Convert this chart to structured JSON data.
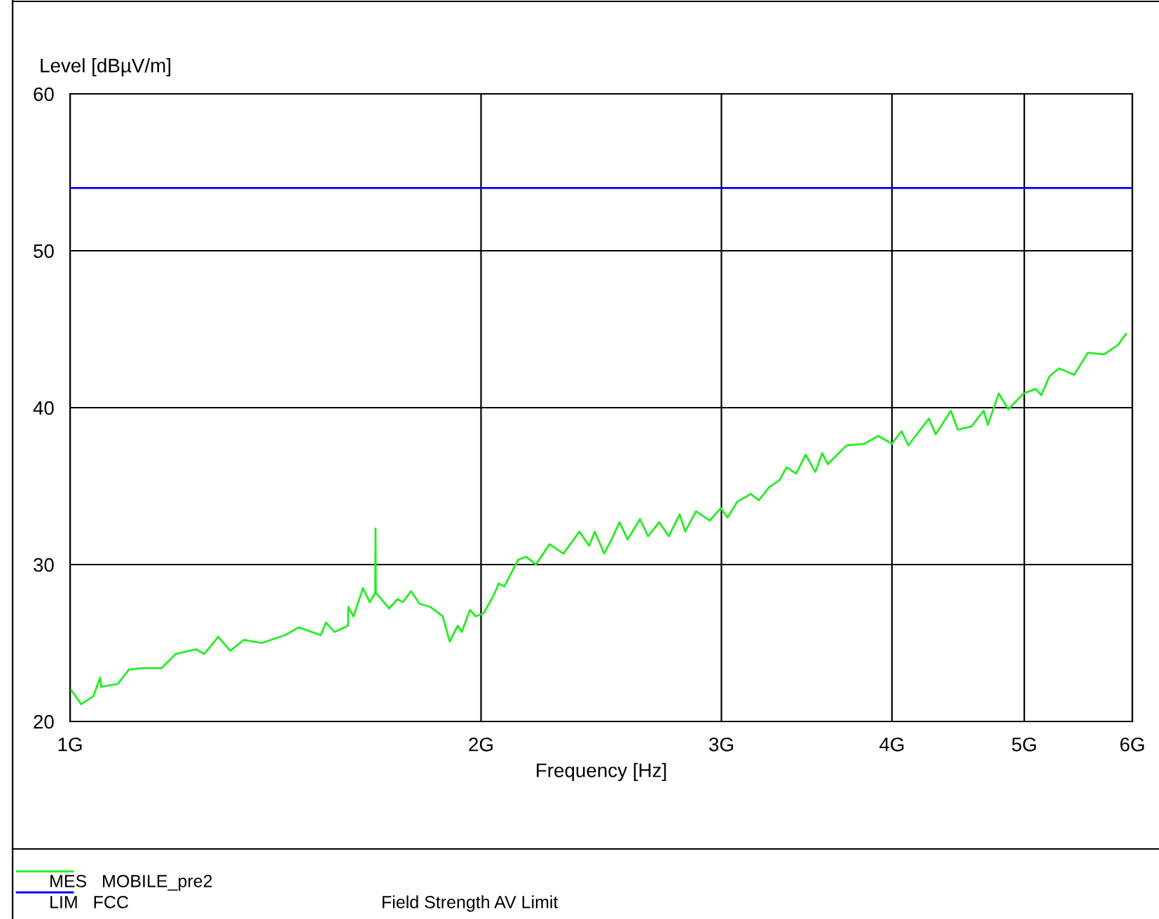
{
  "chart_data": {
    "type": "line",
    "xlabel": "Frequency [Hz]",
    "ylabel": "Level [dBµV/m]",
    "log": "x",
    "xlim": [
      1,
      6
    ],
    "ylim": [
      20,
      60
    ],
    "xticks": [
      {
        "value": 1,
        "label": "1G"
      },
      {
        "value": 2,
        "label": "2G"
      },
      {
        "value": 3,
        "label": "3G"
      },
      {
        "value": 4,
        "label": "4G"
      },
      {
        "value": 5,
        "label": "5G"
      },
      {
        "value": 6,
        "label": "6G"
      }
    ],
    "yticks": [
      20,
      30,
      40,
      50,
      60
    ],
    "grid": true,
    "legend": "bottom",
    "series": [
      {
        "name": "MES   MOBILE_pre2",
        "color": "#22ee22",
        "x": [
          1.002,
          1.019,
          1.04,
          1.052,
          1.054,
          1.084,
          1.104,
          1.128,
          1.167,
          1.195,
          1.237,
          1.254,
          1.284,
          1.31,
          1.341,
          1.382,
          1.437,
          1.471,
          1.526,
          1.54,
          1.562,
          1.598,
          1.599,
          1.613,
          1.639,
          1.658,
          1.673,
          1.674,
          1.675,
          1.713,
          1.737,
          1.753,
          1.777,
          1.803,
          1.836,
          1.875,
          1.897,
          1.923,
          1.936,
          1.963,
          1.982,
          2.009,
          2.042,
          2.061,
          2.08,
          2.129,
          2.158,
          2.194,
          2.245,
          2.298,
          2.361,
          2.4,
          2.423,
          2.462,
          2.502,
          2.526,
          2.561,
          2.615,
          2.651,
          2.701,
          2.745,
          2.796,
          2.822,
          2.874,
          2.942,
          2.997,
          3.031,
          3.081,
          3.152,
          3.196,
          3.249,
          3.31,
          3.348,
          3.403,
          3.458,
          3.515,
          3.556,
          3.589,
          3.706,
          3.819,
          3.908,
          3.999,
          4.065,
          4.112,
          4.257,
          4.306,
          4.418,
          4.469,
          4.573,
          4.669,
          4.702,
          4.789,
          4.867,
          4.993,
          5.098,
          5.145,
          5.217,
          5.302,
          5.439,
          5.566,
          5.722,
          5.856,
          5.936
        ],
        "values": [
          22.0,
          21.1,
          21.6,
          22.8,
          22.2,
          22.4,
          23.3,
          23.4,
          23.4,
          24.3,
          24.6,
          24.3,
          25.4,
          24.5,
          25.2,
          25.0,
          25.5,
          26.0,
          25.5,
          26.3,
          25.7,
          26.1,
          27.3,
          26.7,
          28.5,
          27.6,
          28.2,
          32.3,
          28.2,
          27.2,
          27.8,
          27.6,
          28.3,
          27.5,
          27.3,
          26.7,
          25.1,
          26.1,
          25.7,
          27.1,
          26.7,
          26.9,
          28.0,
          28.8,
          28.6,
          30.3,
          30.5,
          30.0,
          31.3,
          30.7,
          32.1,
          31.2,
          32.1,
          30.7,
          31.9,
          32.7,
          31.6,
          32.9,
          31.8,
          32.7,
          31.8,
          33.2,
          32.1,
          33.4,
          32.8,
          33.6,
          33.0,
          34.0,
          34.5,
          34.1,
          34.9,
          35.4,
          36.2,
          35.8,
          37.0,
          35.9,
          37.1,
          36.4,
          37.6,
          37.7,
          38.2,
          37.7,
          38.5,
          37.6,
          39.3,
          38.3,
          39.8,
          38.6,
          38.8,
          39.8,
          38.9,
          40.9,
          39.9,
          40.9,
          41.2,
          40.8,
          42.0,
          42.5,
          42.1,
          43.5,
          43.4,
          44.0,
          44.7
        ]
      },
      {
        "name": "LIM   FCC",
        "color": "#0000ff",
        "x": [
          1,
          6
        ],
        "values": [
          54,
          54
        ]
      }
    ],
    "annotations": [
      "Field Strength AV Limit"
    ]
  }
}
